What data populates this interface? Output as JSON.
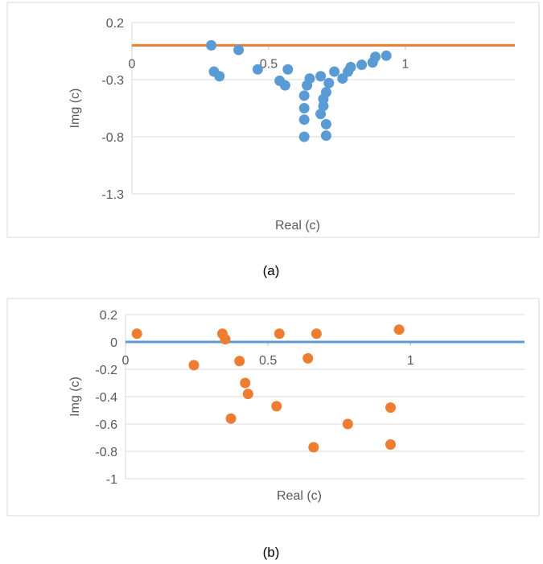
{
  "chart_data": [
    {
      "type": "scatter",
      "caption": "(a)",
      "xlabel": "Real (c)",
      "ylabel": "Img (c)",
      "xlim": [
        0,
        1.4
      ],
      "ylim": [
        -1.3,
        0.2
      ],
      "x_ticks": [
        "0",
        "0.5",
        "1"
      ],
      "x_tick_values": [
        0,
        0.5,
        1
      ],
      "y_ticks": [
        "0.2",
        "-0.3",
        "-0.8",
        "-1.3"
      ],
      "y_tick_values": [
        0.2,
        -0.3,
        -0.8,
        -1.3
      ],
      "grid": "horizontal",
      "legend": "none",
      "reference_line": {
        "y": 0,
        "color": "#ED7D31"
      },
      "marker_color": "#5B9BD5",
      "series": [
        {
          "points": [
            [
              0.29,
              0.0
            ],
            [
              0.3,
              -0.23
            ],
            [
              0.32,
              -0.27
            ],
            [
              0.39,
              -0.04
            ],
            [
              0.46,
              -0.21
            ],
            [
              0.54,
              -0.31
            ],
            [
              0.56,
              -0.35
            ],
            [
              0.57,
              -0.21
            ],
            [
              0.63,
              -0.44
            ],
            [
              0.63,
              -0.55
            ],
            [
              0.63,
              -0.65
            ],
            [
              0.63,
              -0.8
            ],
            [
              0.64,
              -0.35
            ],
            [
              0.65,
              -0.29
            ],
            [
              0.69,
              -0.27
            ],
            [
              0.69,
              -0.6
            ],
            [
              0.7,
              -0.53
            ],
            [
              0.7,
              -0.47
            ],
            [
              0.71,
              -0.41
            ],
            [
              0.71,
              -0.69
            ],
            [
              0.71,
              -0.79
            ],
            [
              0.72,
              -0.33
            ],
            [
              0.74,
              -0.23
            ],
            [
              0.77,
              -0.29
            ],
            [
              0.79,
              -0.23
            ],
            [
              0.8,
              -0.19
            ],
            [
              0.84,
              -0.17
            ],
            [
              0.88,
              -0.15
            ],
            [
              0.89,
              -0.1
            ],
            [
              0.93,
              -0.09
            ]
          ]
        }
      ]
    },
    {
      "type": "scatter",
      "caption": "(b)",
      "xlabel": "Real (c)",
      "ylabel": "Img (c)",
      "xlim": [
        0,
        1.4
      ],
      "ylim": [
        -1,
        0.2
      ],
      "x_ticks": [
        "0",
        "0.5",
        "1"
      ],
      "x_tick_values": [
        0,
        0.5,
        1
      ],
      "y_ticks": [
        "0.2",
        "0",
        "-0.2",
        "-0.4",
        "-0.6",
        "-0.8",
        "-1"
      ],
      "y_tick_values": [
        0.2,
        0,
        -0.2,
        -0.4,
        -0.6,
        -0.8,
        -1
      ],
      "grid": "horizontal",
      "legend": "none",
      "reference_line": {
        "y": 0,
        "color": "#5B9BD5"
      },
      "marker_color": "#ED7D31",
      "series": [
        {
          "points": [
            [
              0.04,
              0.06
            ],
            [
              0.24,
              -0.17
            ],
            [
              0.34,
              0.06
            ],
            [
              0.35,
              0.02
            ],
            [
              0.37,
              -0.56
            ],
            [
              0.4,
              -0.14
            ],
            [
              0.42,
              -0.3
            ],
            [
              0.43,
              -0.38
            ],
            [
              0.53,
              -0.47
            ],
            [
              0.54,
              0.06
            ],
            [
              0.64,
              -0.12
            ],
            [
              0.66,
              -0.77
            ],
            [
              0.67,
              0.06
            ],
            [
              0.78,
              -0.6
            ],
            [
              0.93,
              -0.48
            ],
            [
              0.93,
              -0.75
            ],
            [
              0.96,
              0.09
            ]
          ]
        }
      ]
    }
  ]
}
